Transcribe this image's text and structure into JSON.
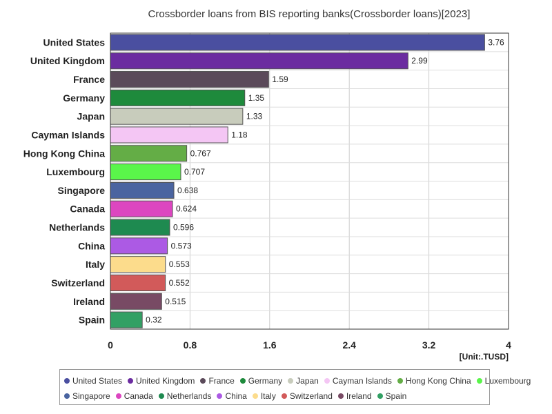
{
  "chart_data": {
    "type": "bar",
    "orientation": "horizontal",
    "title": "Crossborder loans from BIS reporting banks(Crossborder loans)[2023]",
    "unit_label": "[Unit:.TUSD]",
    "xlim": [
      0,
      4
    ],
    "ticks": [
      "0",
      "0.8",
      "1.6",
      "2.4",
      "3.2",
      "4"
    ],
    "tick_values": [
      0,
      0.8,
      1.6,
      2.4,
      3.2,
      4
    ],
    "grid": true,
    "legend_position": "bottom",
    "categories": [
      "United States",
      "United Kingdom",
      "France",
      "Germany",
      "Japan",
      "Cayman Islands",
      "Hong Kong China",
      "Luxembourg",
      "Singapore",
      "Canada",
      "Netherlands",
      "China",
      "Italy",
      "Switzerland",
      "Ireland",
      "Spain"
    ],
    "values": [
      3.76,
      2.99,
      1.59,
      1.35,
      1.33,
      1.18,
      0.767,
      0.707,
      0.638,
      0.624,
      0.596,
      0.573,
      0.553,
      0.552,
      0.515,
      0.32
    ],
    "value_labels": [
      "3.76",
      "2.99",
      "1.59",
      "1.35",
      "1.33",
      "1.18",
      "0.767",
      "0.707",
      "0.638",
      "0.624",
      "0.596",
      "0.573",
      "0.553",
      "0.552",
      "0.515",
      "0.32"
    ],
    "colors": [
      "#4a4fa0",
      "#6b2ca0",
      "#5b4a5a",
      "#1e8a3c",
      "#c8ccbc",
      "#f4c6f4",
      "#64ad46",
      "#5af54a",
      "#4a64a0",
      "#dc46c0",
      "#1e8a50",
      "#ac5ae4",
      "#fcdc8c",
      "#d25a5a",
      "#784a64",
      "#32a064"
    ]
  }
}
